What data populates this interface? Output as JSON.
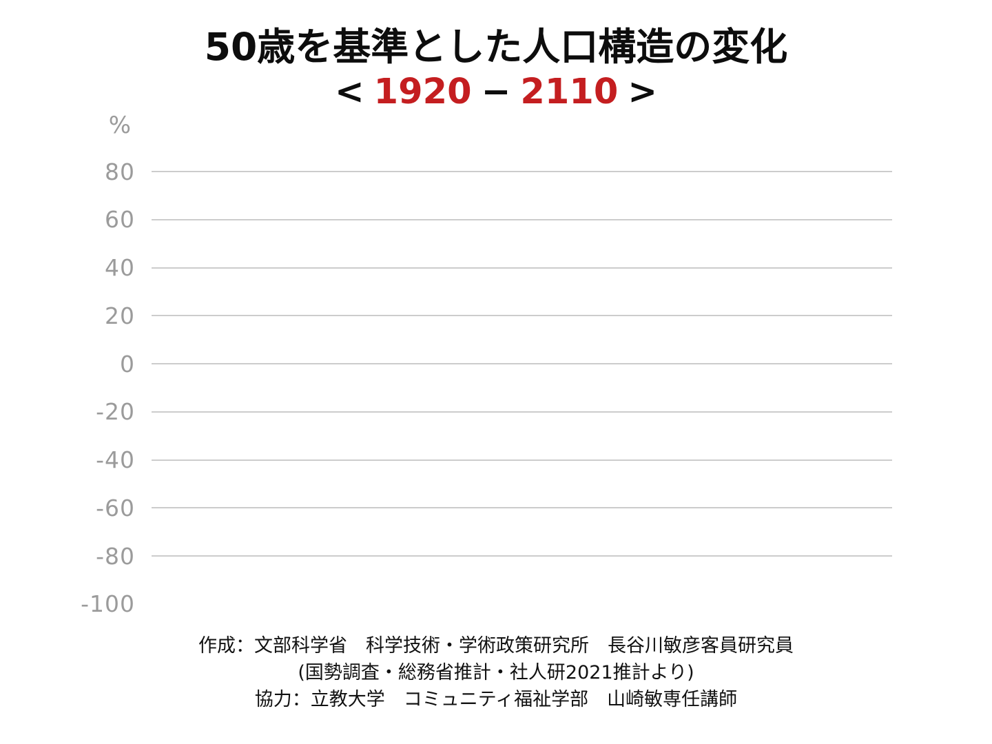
{
  "header": {
    "title": "50歳を基準とした人口構造の変化",
    "subtitle": {
      "open_bracket": "<",
      "start_year": "1920",
      "dash": "−",
      "end_year": "2110",
      "close_bracket": ">"
    }
  },
  "colors": {
    "accent_red": "#c41e20",
    "title_black": "#0d0d0d",
    "tick_label_gray": "#9b9b9b",
    "gridline_gray": "#cccccc",
    "background": "#ffffff"
  },
  "chart_data": {
    "type": "line",
    "title": "50歳を基準とした人口構造の変化",
    "subtitle": "< 1920 − 2110 >",
    "xlabel": "",
    "ylabel": "%",
    "x_range": [
      1920,
      2110
    ],
    "ylim": [
      -100,
      90
    ],
    "grid": true,
    "legend": false,
    "series": [],
    "yticks": [
      {
        "label": "80",
        "value": 80,
        "gridline": true
      },
      {
        "label": "60",
        "value": 60,
        "gridline": true
      },
      {
        "label": "40",
        "value": 40,
        "gridline": true
      },
      {
        "label": "20",
        "value": 20,
        "gridline": true
      },
      {
        "label": "0",
        "value": 0,
        "gridline": true
      },
      {
        "label": "-20",
        "value": -20,
        "gridline": true
      },
      {
        "label": "-40",
        "value": -40,
        "gridline": true
      },
      {
        "label": "-60",
        "value": -60,
        "gridline": true
      },
      {
        "label": "-80",
        "value": -80,
        "gridline": true
      },
      {
        "label": "-100",
        "value": -100,
        "gridline": false
      }
    ]
  },
  "footer": {
    "line1": "作成：文部科学省　科学技術・学術政策研究所　長谷川敏彦客員研究員",
    "line2": "(国勢調査・総務省推計・社人研2021推計より)",
    "line3": "協力：立教大学　コミュニティ福祉学部　山崎敏専任講師"
  }
}
